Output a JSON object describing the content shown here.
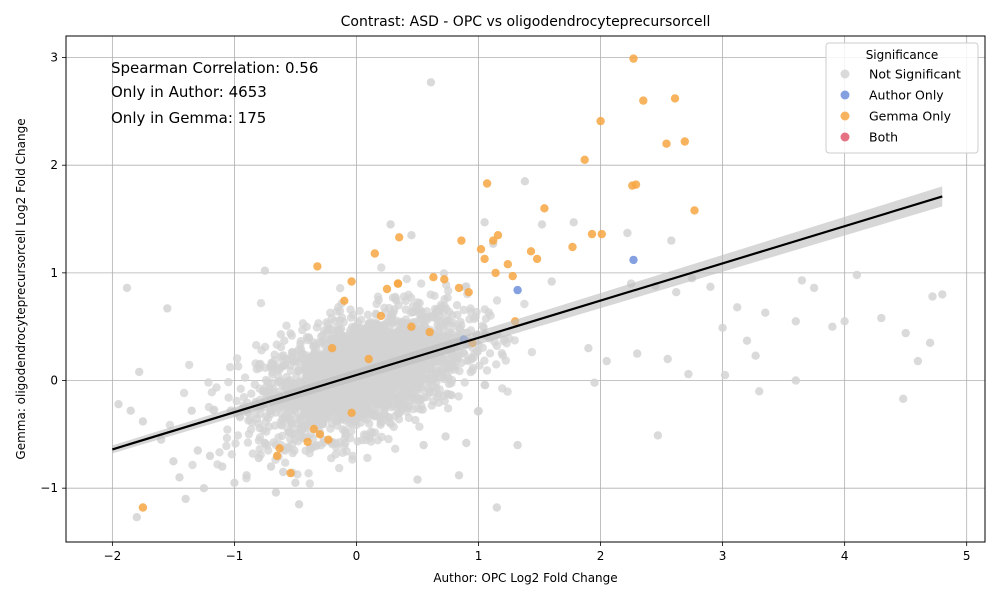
{
  "chart_data": {
    "type": "scatter",
    "title": "Contrast: ASD - OPC vs oligodendrocyteprecursorcell",
    "xlabel": "Author: OPC Log2 Fold Change",
    "ylabel": "Gemma: oligodendrocyteprecursorcell Log2 Fold Change",
    "xlim": [
      -2.38,
      5.15
    ],
    "ylim": [
      -1.5,
      3.2
    ],
    "x_ticks": [
      -2,
      -1,
      0,
      1,
      2,
      3,
      4,
      5
    ],
    "y_ticks": [
      -1,
      0,
      1,
      2,
      3
    ],
    "grid": true,
    "annotations": [
      "Spearman Correlation: 0.56",
      "Only in Author: 4653",
      "Only in Gemma: 175"
    ],
    "legend": {
      "title": "Significance",
      "placement": "top-right",
      "entries": [
        {
          "label": "Not Significant",
          "color": "#d3d3d3"
        },
        {
          "label": "Author Only",
          "color": "#6f8fdc"
        },
        {
          "label": "Gemma Only",
          "color": "#f7a643"
        },
        {
          "label": "Both",
          "color": "#e0586d"
        }
      ]
    },
    "regression_line": {
      "x": [
        -2.0,
        4.8
      ],
      "y": [
        -0.64,
        1.71
      ],
      "color": "#000000"
    },
    "series": [
      {
        "name": "Not Significant",
        "color": "#d3d3d3",
        "note_points": "dense cloud of ~6000 genes centered near (0,0); outliers listed",
        "x": [
          0.61,
          1.38,
          1.05,
          1.12,
          2.22,
          2.58,
          1.78,
          2.25,
          2.45,
          2.62,
          2.75,
          2.9,
          3.0,
          3.12,
          3.2,
          3.35,
          3.6,
          3.65,
          3.75,
          3.9,
          4.1,
          4.3,
          4.5,
          4.6,
          4.7,
          4.72,
          4.8,
          4.48,
          3.3,
          2.47,
          2.72,
          3.02,
          3.27,
          1.52,
          1.6,
          2.3,
          1.9,
          1.95,
          2.05,
          2.55,
          -1.88,
          -1.95,
          -1.85,
          -1.75,
          -1.6,
          -1.5,
          -1.45,
          -1.3,
          -1.2,
          -1.1,
          -1.0,
          -0.9,
          -0.8,
          -0.7,
          -1.35,
          -1.4,
          -1.25,
          -0.6,
          -0.5,
          -0.47,
          -0.66,
          0.55,
          0.73,
          0.84,
          0.9,
          1.15,
          0.5,
          0.28,
          0.45,
          -0.75,
          1.32,
          -1.8,
          -1.78,
          -1.55,
          3.6,
          4.0
        ],
        "y": [
          2.77,
          1.85,
          1.47,
          1.27,
          1.37,
          1.3,
          1.47,
          0.9,
          0.88,
          0.82,
          0.95,
          0.87,
          0.49,
          0.68,
          0.37,
          0.63,
          0.55,
          0.93,
          0.86,
          0.5,
          0.98,
          0.58,
          0.44,
          0.18,
          0.35,
          0.78,
          0.8,
          -0.17,
          -0.1,
          -0.51,
          0.06,
          0.05,
          0.23,
          1.45,
          0.92,
          0.25,
          0.3,
          -0.02,
          0.18,
          0.2,
          0.86,
          -0.22,
          -0.28,
          -0.38,
          -0.55,
          -0.75,
          -0.9,
          -0.65,
          -0.7,
          -0.8,
          -0.95,
          -0.88,
          -0.72,
          -0.8,
          -0.28,
          -1.1,
          -1.0,
          -0.85,
          -0.95,
          -1.15,
          -1.04,
          -0.6,
          -0.52,
          -0.88,
          -0.58,
          -1.18,
          -0.92,
          1.45,
          1.35,
          1.02,
          -0.6,
          -1.27,
          0.08,
          0.67,
          0.0,
          0.55
        ]
      },
      {
        "name": "Author Only",
        "color": "#6f8fdc",
        "x": [
          2.27,
          1.32,
          0.88
        ],
        "y": [
          1.12,
          0.84,
          0.38
        ]
      },
      {
        "name": "Gemma Only",
        "color": "#f7a643",
        "x": [
          2.27,
          2.35,
          2.61,
          2.0,
          2.54,
          2.69,
          1.87,
          2.26,
          2.29,
          2.77,
          1.07,
          1.54,
          1.93,
          2.01,
          1.77,
          1.16,
          1.12,
          0.86,
          1.02,
          1.05,
          1.43,
          1.24,
          1.48,
          1.28,
          0.15,
          0.35,
          -0.32,
          0.34,
          -0.04,
          0.34,
          0.72,
          0.84,
          0.63,
          0.92,
          1.14,
          -0.1,
          0.25,
          -0.04,
          -0.23,
          -0.3,
          -0.35,
          -0.4,
          -0.54,
          -0.63,
          -1.75,
          -0.65,
          0.1,
          0.45,
          0.6,
          0.95,
          1.3,
          0.2,
          -0.2
        ],
        "y": [
          2.99,
          2.6,
          2.62,
          2.41,
          2.2,
          2.22,
          2.05,
          1.81,
          1.82,
          1.58,
          1.83,
          1.6,
          1.36,
          1.36,
          1.24,
          1.35,
          1.3,
          1.3,
          1.22,
          1.13,
          1.2,
          1.08,
          1.13,
          0.97,
          1.18,
          1.33,
          1.06,
          0.9,
          0.92,
          0.9,
          0.94,
          0.86,
          0.96,
          0.82,
          1.0,
          0.74,
          0.85,
          -0.3,
          -0.55,
          -0.5,
          -0.45,
          -0.57,
          -0.86,
          -0.63,
          -1.18,
          -0.7,
          0.2,
          0.5,
          0.45,
          0.35,
          0.55,
          0.6,
          0.3
        ]
      },
      {
        "name": "Both",
        "color": "#e0586d",
        "x": [],
        "y": []
      }
    ]
  }
}
